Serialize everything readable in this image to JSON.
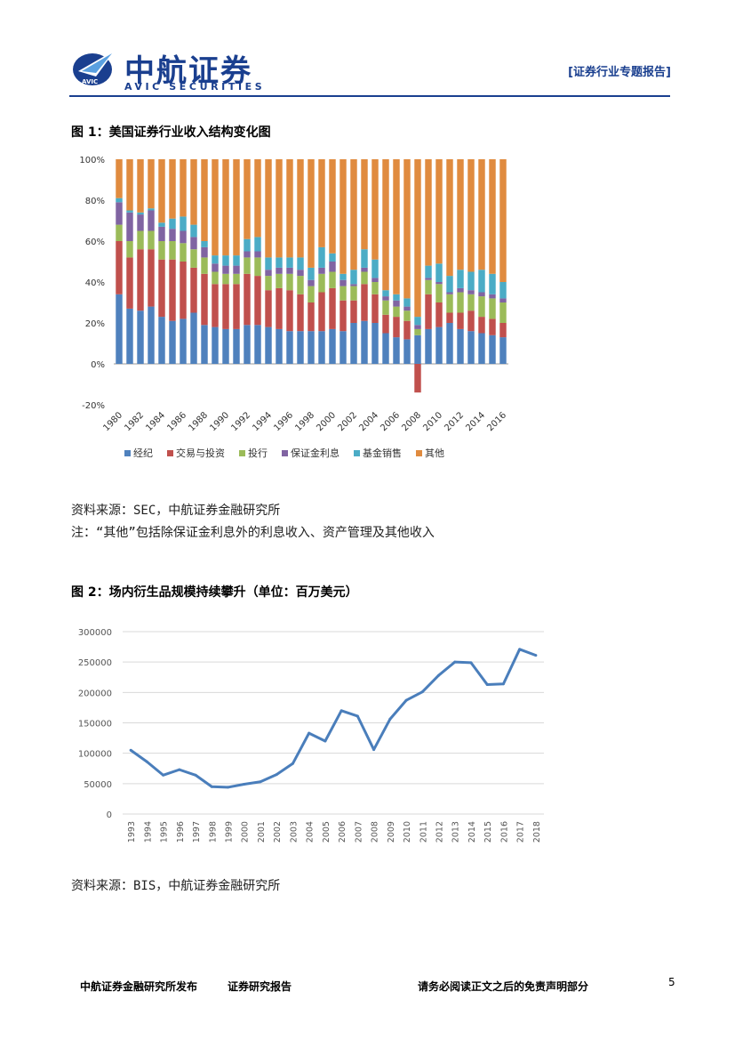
{
  "header": {
    "brand_cn": "中航证券",
    "brand_en": "AVIC SECURITIES",
    "logo_badge": "AVIC",
    "report_type": "[证券行业专题报告]",
    "brand_color": "#1a3f8f"
  },
  "figure1": {
    "title": "图 1：美国证券行业收入结构变化图",
    "source": "资料来源：SEC，中航证券金融研究所",
    "note": "注：“其他”包括除保证金利息外的利息收入、资产管理及其他收入"
  },
  "figure2": {
    "title": "图 2：场内衍生品规模持续攀升（单位：百万美元）",
    "source": "资料来源：BIS，中航证券金融研究所"
  },
  "footer": {
    "publisher": "中航证券金融研究所发布",
    "report_kind": "证券研究报告",
    "disclaimer": "请务必阅读正文之后的免责声明部分",
    "page": "5"
  },
  "chart_data": [
    {
      "type": "bar",
      "stacked": true,
      "title": "",
      "years": [
        1980,
        1981,
        1982,
        1983,
        1984,
        1985,
        1986,
        1987,
        1988,
        1989,
        1990,
        1991,
        1992,
        1993,
        1994,
        1995,
        1996,
        1997,
        1998,
        1999,
        2000,
        2001,
        2002,
        2003,
        2004,
        2005,
        2006,
        2007,
        2008,
        2009,
        2010,
        2011,
        2012,
        2013,
        2014,
        2015,
        2016
      ],
      "tick_labels": [
        "1980",
        "1982",
        "1984",
        "1986",
        "1988",
        "1990",
        "1992",
        "1994",
        "1996",
        "1998",
        "2000",
        "2002",
        "2004",
        "2006",
        "2008",
        "2010",
        "2012",
        "2014",
        "2016"
      ],
      "ylim": [
        -20,
        100
      ],
      "y_ticks": [
        "100%",
        "80%",
        "60%",
        "40%",
        "20%",
        "0%",
        "-20%"
      ],
      "y_tick_values": [
        100,
        80,
        60,
        40,
        20,
        0,
        -20
      ],
      "legend_position": "bottom",
      "series": [
        {
          "name": "经纪",
          "color": "#4f81bd",
          "values": [
            34,
            27,
            26,
            28,
            23,
            21,
            22,
            25,
            19,
            18,
            17,
            17,
            19,
            19,
            18,
            17,
            16,
            16,
            16,
            16,
            17,
            16,
            20,
            21,
            20,
            15,
            13,
            12,
            14,
            17,
            18,
            20,
            17,
            16,
            15,
            14,
            13
          ]
        },
        {
          "name": "交易与投资",
          "color": "#c0504d",
          "values": [
            26,
            25,
            30,
            28,
            28,
            30,
            28,
            22,
            25,
            21,
            22,
            22,
            25,
            24,
            18,
            20,
            20,
            18,
            14,
            19,
            20,
            15,
            11,
            18,
            14,
            9,
            10,
            9,
            -14,
            17,
            12,
            5,
            8,
            10,
            8,
            8,
            7
          ]
        },
        {
          "name": "投行",
          "color": "#9bbb59",
          "values": [
            8,
            8,
            9,
            9,
            9,
            9,
            9,
            9,
            8,
            6,
            5,
            5,
            8,
            9,
            7,
            7,
            8,
            9,
            8,
            9,
            8,
            7,
            7,
            6,
            6,
            7,
            5,
            5,
            3,
            7,
            9,
            9,
            10,
            8,
            10,
            10,
            10
          ]
        },
        {
          "name": "保证金利息",
          "color": "#8064a2",
          "values": [
            11,
            14,
            8,
            10,
            7,
            6,
            6,
            6,
            5,
            4,
            4,
            4,
            3,
            3,
            3,
            3,
            3,
            3,
            3,
            3,
            5,
            3,
            1,
            2,
            2,
            2,
            3,
            2,
            2,
            1,
            1,
            1,
            2,
            2,
            2,
            2,
            2
          ]
        },
        {
          "name": "基金销售",
          "color": "#4bacc6",
          "values": [
            2,
            1,
            1,
            1,
            2,
            5,
            7,
            6,
            3,
            4,
            5,
            5,
            6,
            7,
            6,
            5,
            5,
            6,
            6,
            10,
            4,
            3,
            7,
            9,
            9,
            3,
            3,
            4,
            4,
            6,
            9,
            8,
            9,
            9,
            11,
            10,
            8
          ]
        },
        {
          "name": "其他",
          "color": "#e08b3f",
          "values": [
            19,
            25,
            26,
            24,
            31,
            29,
            28,
            32,
            40,
            47,
            47,
            47,
            39,
            38,
            48,
            48,
            48,
            48,
            53,
            43,
            46,
            56,
            54,
            44,
            49,
            64,
            66,
            68,
            77,
            52,
            51,
            57,
            54,
            55,
            54,
            56,
            60
          ]
        }
      ]
    },
    {
      "type": "line",
      "title": "",
      "x": [
        "1993",
        "1994",
        "1995",
        "1996",
        "1997",
        "1998",
        "1999",
        "2000",
        "2001",
        "2002",
        "2003",
        "2004",
        "2005",
        "2006",
        "2007",
        "2008",
        "2009",
        "2010",
        "2011",
        "2012",
        "2013",
        "2014",
        "2015",
        "2016",
        "2017",
        "2018"
      ],
      "values": [
        105000,
        86000,
        64000,
        73000,
        64000,
        45000,
        44000,
        49000,
        53000,
        65000,
        83000,
        133000,
        120000,
        170000,
        161000,
        106000,
        156000,
        187000,
        201000,
        228000,
        250000,
        249000,
        213000,
        214000,
        271000,
        261000
      ],
      "ylim": [
        0,
        300000
      ],
      "y_ticks": [
        "0",
        "50000",
        "100000",
        "150000",
        "200000",
        "250000",
        "300000"
      ],
      "y_tick_values": [
        0,
        50000,
        100000,
        150000,
        200000,
        250000,
        300000
      ],
      "line_color": "#4a7ebb",
      "grid": true
    }
  ]
}
